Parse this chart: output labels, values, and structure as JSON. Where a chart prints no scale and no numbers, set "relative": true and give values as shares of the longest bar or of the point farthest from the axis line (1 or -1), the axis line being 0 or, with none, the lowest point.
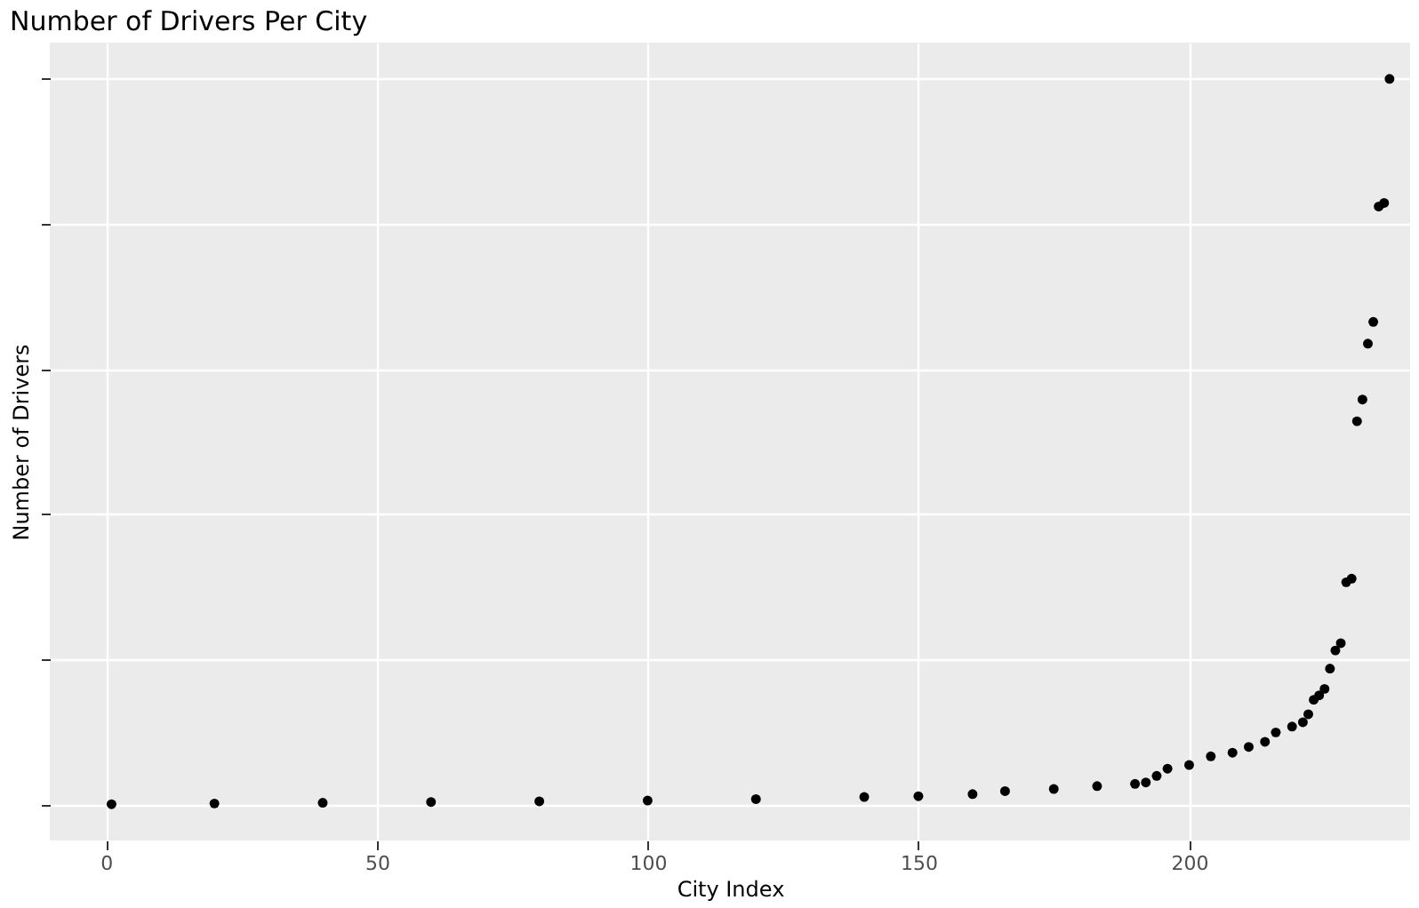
{
  "chart_data": {
    "type": "scatter",
    "title": "Number of Drivers Per City",
    "xlabel": "City Index",
    "ylabel": "Number of Drivers",
    "relative": true,
    "grid": true,
    "marker": "circle",
    "tick_labels": "x",
    "xlim": [
      -10.4,
      240.8
    ],
    "xticks": [
      0,
      50,
      100,
      150,
      200
    ],
    "x": [
      1,
      20,
      40,
      60,
      80,
      100,
      120,
      140,
      150,
      160,
      166,
      175,
      183,
      190,
      192,
      194,
      196,
      200,
      204,
      208,
      211,
      214,
      216,
      219,
      221,
      222,
      223,
      224,
      225,
      226,
      227,
      228,
      229,
      230,
      231,
      232,
      233,
      234,
      235,
      236,
      237
    ],
    "series": [
      {
        "color": "#000000",
        "values": [
          0,
          0.001,
          0.002,
          0.003,
          0.004,
          0.005,
          0.007,
          0.01,
          0.011,
          0.014,
          0.018,
          0.021,
          0.025,
          0.028,
          0.03,
          0.039,
          0.049,
          0.054,
          0.066,
          0.071,
          0.079,
          0.086,
          0.099,
          0.107,
          0.113,
          0.124,
          0.144,
          0.15,
          0.159,
          0.187,
          0.212,
          0.222,
          0.306,
          0.311,
          0.528,
          0.558,
          0.635,
          0.665,
          0.824,
          0.829,
          1
        ]
      }
    ]
  }
}
